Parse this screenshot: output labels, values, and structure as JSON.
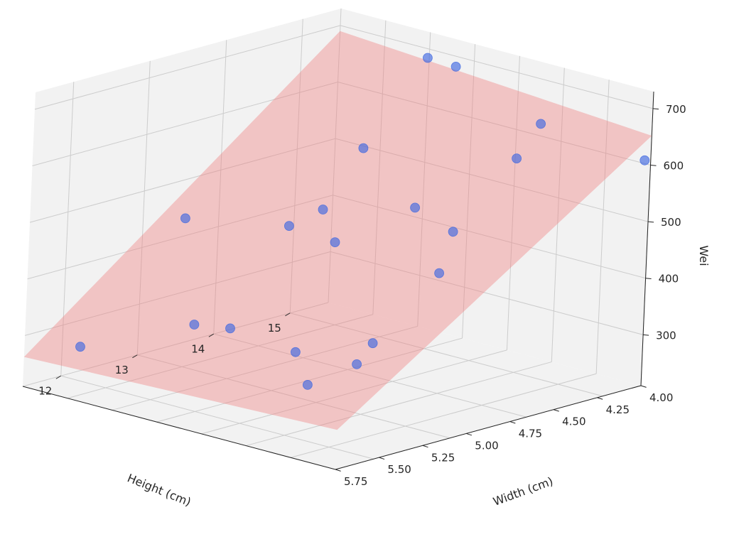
{
  "chart_data": {
    "type": "scatter3d",
    "x_axis": {
      "label": "Height (cm)",
      "ticks": [
        {
          "value": 15,
          "label": "15"
        },
        {
          "value": 14,
          "label": "14"
        },
        {
          "value": 13,
          "label": "13"
        },
        {
          "value": 12,
          "label": "12"
        }
      ]
    },
    "y_axis": {
      "label": "Width (cm)",
      "ticks": [
        {
          "value": 4.0,
          "label": "4.00"
        },
        {
          "value": 4.25,
          "label": "4.25"
        },
        {
          "value": 4.5,
          "label": "4.50"
        },
        {
          "value": 4.75,
          "label": "4.75"
        },
        {
          "value": 5.0,
          "label": "5.00"
        },
        {
          "value": 5.25,
          "label": "5.25"
        },
        {
          "value": 5.5,
          "label": "5.50"
        },
        {
          "value": 5.75,
          "label": "5.75"
        }
      ]
    },
    "z_axis": {
      "label": "Wei",
      "ticks": [
        {
          "value": 300,
          "label": "300"
        },
        {
          "value": 400,
          "label": "400"
        },
        {
          "value": 500,
          "label": "500"
        },
        {
          "value": 600,
          "label": "600"
        },
        {
          "value": 700,
          "label": "700"
        }
      ]
    },
    "grid": true,
    "point_color": "#4169e1",
    "plane_color": "#f08080",
    "pane_color": "#f2f2f2",
    "points": [
      {
        "height": 15.0,
        "width": 4.7,
        "weight": 720
      },
      {
        "height": 14.9,
        "width": 4.9,
        "weight": 725
      },
      {
        "height": 15.1,
        "width": 5.3,
        "weight": 650
      },
      {
        "height": 15.3,
        "width": 5.8,
        "weight": 620
      },
      {
        "height": 14.8,
        "width": 5.3,
        "weight": 600
      },
      {
        "height": 14.2,
        "width": 4.7,
        "weight": 590
      },
      {
        "height": 14.2,
        "width": 5.0,
        "weight": 510
      },
      {
        "height": 14.0,
        "width": 5.3,
        "weight": 500
      },
      {
        "height": 13.7,
        "width": 4.7,
        "weight": 500
      },
      {
        "height": 13.5,
        "width": 4.6,
        "weight": 470
      },
      {
        "height": 13.4,
        "width": 4.9,
        "weight": 470
      },
      {
        "height": 13.6,
        "width": 5.4,
        "weight": 450
      },
      {
        "height": 12.6,
        "width": 4.4,
        "weight": 500
      },
      {
        "height": 13.0,
        "width": 5.3,
        "weight": 340
      },
      {
        "height": 12.3,
        "width": 4.6,
        "weight": 340
      },
      {
        "height": 12.3,
        "width": 4.8,
        "weight": 350
      },
      {
        "height": 12.8,
        "width": 5.3,
        "weight": 310
      },
      {
        "height": 12.4,
        "width": 5.2,
        "weight": 280
      },
      {
        "height": 12.0,
        "width": 4.1,
        "weight": 270
      },
      {
        "height": 12.7,
        "width": 5.0,
        "weight": 310
      }
    ],
    "regression_plane": {
      "corners": [
        {
          "height": 15.5,
          "width": 5.75,
          "weight": 652
        },
        {
          "height": 15.5,
          "width": 4.0,
          "weight": 690
        },
        {
          "height": 11.5,
          "width": 4.0,
          "weight": 262
        },
        {
          "height": 11.5,
          "width": 5.75,
          "weight": 280
        }
      ]
    }
  }
}
